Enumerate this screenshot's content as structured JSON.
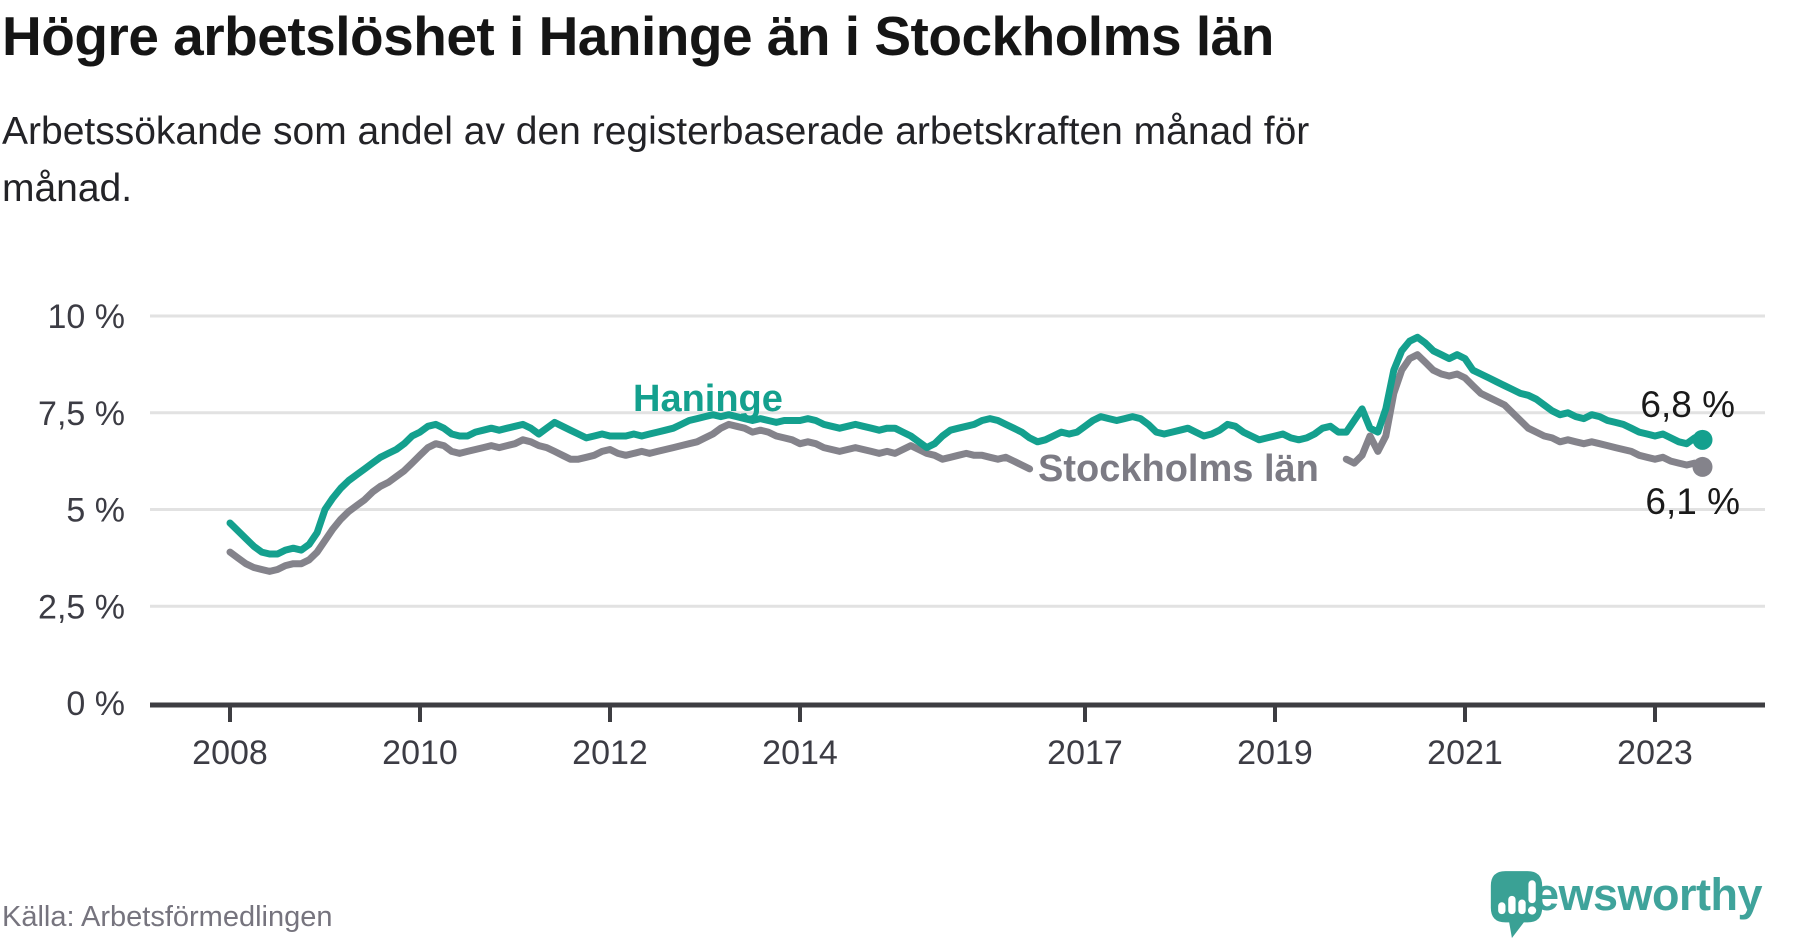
{
  "header": {
    "title": "Högre arbetslöshet i Haninge än i Stockholms län",
    "subtitle_lines": [
      "Arbetssökande som andel av den registerbaserade arbetskraften månad för",
      "månad."
    ]
  },
  "footer": {
    "source": "Källa: Arbetsförmedlingen",
    "brand": "Newsworthy"
  },
  "colors": {
    "haninge": "#14a08e",
    "stockholm": "#84838b",
    "stockholm_label": "#7c7b84",
    "grid": "#e2e2e2",
    "axis": "#3d3d42",
    "tick_label": "#3c3c44",
    "value_label": "#1a1a1a",
    "source_text": "#76747e",
    "brand_teal": "#3fa39b"
  },
  "chart_data": {
    "type": "line",
    "unit": "%",
    "frequency": "monthly",
    "start_month": "2008-01",
    "end_month": "2023-07",
    "x_domain": [
      2008.0,
      2023.6
    ],
    "y_domain": [
      0,
      10.5
    ],
    "grid": "horizontal gridlines at each y tick, no vertical grid",
    "legend_position": "inline labels on lines, end-value labels at right",
    "x_ticks": [
      2008,
      2010,
      2012,
      2014,
      2017,
      2019,
      2021,
      2023
    ],
    "y_ticks": [
      {
        "value": 0,
        "label": "0 %"
      },
      {
        "value": 2.5,
        "label": "2,5 %"
      },
      {
        "value": 5,
        "label": "5 %"
      },
      {
        "value": 7.5,
        "label": "7,5 %"
      },
      {
        "value": 10,
        "label": "10 %"
      }
    ],
    "series": [
      {
        "name": "Haninge",
        "color": "#14a08e",
        "end_label": "6,8 %",
        "end_value": 6.8,
        "values": [
          4.65,
          4.45,
          4.25,
          4.05,
          3.9,
          3.85,
          3.85,
          3.95,
          4.0,
          3.95,
          4.1,
          4.4,
          5.0,
          5.3,
          5.55,
          5.75,
          5.9,
          6.05,
          6.2,
          6.35,
          6.45,
          6.55,
          6.7,
          6.9,
          7.0,
          7.15,
          7.2,
          7.1,
          6.95,
          6.9,
          6.9,
          7.0,
          7.05,
          7.1,
          7.05,
          7.1,
          7.15,
          7.2,
          7.1,
          6.95,
          7.1,
          7.25,
          7.15,
          7.05,
          6.95,
          6.85,
          6.9,
          6.95,
          6.9,
          6.9,
          6.9,
          6.95,
          6.9,
          6.95,
          7.0,
          7.05,
          7.1,
          7.2,
          7.3,
          7.35,
          7.4,
          7.45,
          7.4,
          7.45,
          7.4,
          7.35,
          7.3,
          7.35,
          7.3,
          7.25,
          7.3,
          7.3,
          7.3,
          7.35,
          7.3,
          7.2,
          7.15,
          7.1,
          7.15,
          7.2,
          7.15,
          7.1,
          7.05,
          7.1,
          7.1,
          7.0,
          6.9,
          6.75,
          6.6,
          6.7,
          6.9,
          7.05,
          7.1,
          7.15,
          7.2,
          7.3,
          7.35,
          7.3,
          7.2,
          7.1,
          7.0,
          6.85,
          6.75,
          6.8,
          6.9,
          7.0,
          6.95,
          7.0,
          7.15,
          7.3,
          7.4,
          7.35,
          7.3,
          7.35,
          7.4,
          7.35,
          7.2,
          7.0,
          6.95,
          7.0,
          7.05,
          7.1,
          7.0,
          6.9,
          6.95,
          7.05,
          7.2,
          7.15,
          7.0,
          6.9,
          6.8,
          6.85,
          6.9,
          6.95,
          6.85,
          6.8,
          6.85,
          6.95,
          7.1,
          7.15,
          7.0,
          7.0,
          7.3,
          7.6,
          7.1,
          7.0,
          7.6,
          8.6,
          9.1,
          9.35,
          9.45,
          9.3,
          9.1,
          9.0,
          8.9,
          9.0,
          8.9,
          8.6,
          8.5,
          8.4,
          8.3,
          8.2,
          8.1,
          8.0,
          7.95,
          7.85,
          7.7,
          7.55,
          7.45,
          7.5,
          7.4,
          7.35,
          7.45,
          7.4,
          7.3,
          7.25,
          7.2,
          7.1,
          7.0,
          6.95,
          6.9,
          6.95,
          6.85,
          6.75,
          6.7,
          6.85,
          6.8
        ]
      },
      {
        "name": "Stockholms län",
        "color": "#84838b",
        "end_label": "6,1 %",
        "end_value": 6.1,
        "hidden_segment": {
          "from_index": 102,
          "to_index": 140,
          "reason": "line hidden where the series label is printed"
        },
        "values": [
          3.9,
          3.75,
          3.6,
          3.5,
          3.45,
          3.4,
          3.45,
          3.55,
          3.6,
          3.6,
          3.7,
          3.9,
          4.2,
          4.5,
          4.75,
          4.95,
          5.1,
          5.25,
          5.45,
          5.6,
          5.7,
          5.85,
          6.0,
          6.2,
          6.4,
          6.6,
          6.7,
          6.65,
          6.5,
          6.45,
          6.5,
          6.55,
          6.6,
          6.65,
          6.6,
          6.65,
          6.7,
          6.8,
          6.75,
          6.65,
          6.6,
          6.5,
          6.4,
          6.3,
          6.3,
          6.35,
          6.4,
          6.5,
          6.55,
          6.45,
          6.4,
          6.45,
          6.5,
          6.45,
          6.5,
          6.55,
          6.6,
          6.65,
          6.7,
          6.75,
          6.85,
          6.95,
          7.1,
          7.2,
          7.15,
          7.1,
          7.0,
          7.05,
          7.0,
          6.9,
          6.85,
          6.8,
          6.7,
          6.75,
          6.7,
          6.6,
          6.55,
          6.5,
          6.55,
          6.6,
          6.55,
          6.5,
          6.45,
          6.5,
          6.45,
          6.55,
          6.65,
          6.55,
          6.45,
          6.4,
          6.3,
          6.35,
          6.4,
          6.45,
          6.4,
          6.4,
          6.35,
          6.3,
          6.35,
          6.25,
          6.15,
          6.05,
          6.1,
          6.15,
          6.2,
          6.25,
          6.2,
          6.25,
          6.3,
          6.35,
          6.3,
          6.25,
          6.2,
          6.15,
          6.25,
          6.3,
          6.25,
          6.2,
          6.15,
          6.2,
          6.2,
          6.25,
          6.2,
          6.1,
          6.1,
          6.15,
          6.25,
          6.3,
          6.2,
          6.15,
          6.1,
          6.15,
          6.2,
          6.25,
          6.2,
          6.15,
          6.1,
          6.15,
          6.3,
          6.35,
          6.3,
          6.3,
          6.2,
          6.4,
          6.9,
          6.5,
          6.9,
          8.0,
          8.6,
          8.9,
          9.0,
          8.8,
          8.6,
          8.5,
          8.45,
          8.5,
          8.4,
          8.2,
          8.0,
          7.9,
          7.8,
          7.7,
          7.5,
          7.3,
          7.1,
          7.0,
          6.9,
          6.85,
          6.75,
          6.8,
          6.75,
          6.7,
          6.75,
          6.7,
          6.65,
          6.6,
          6.55,
          6.5,
          6.4,
          6.35,
          6.3,
          6.35,
          6.25,
          6.2,
          6.15,
          6.2,
          6.1
        ]
      }
    ]
  }
}
